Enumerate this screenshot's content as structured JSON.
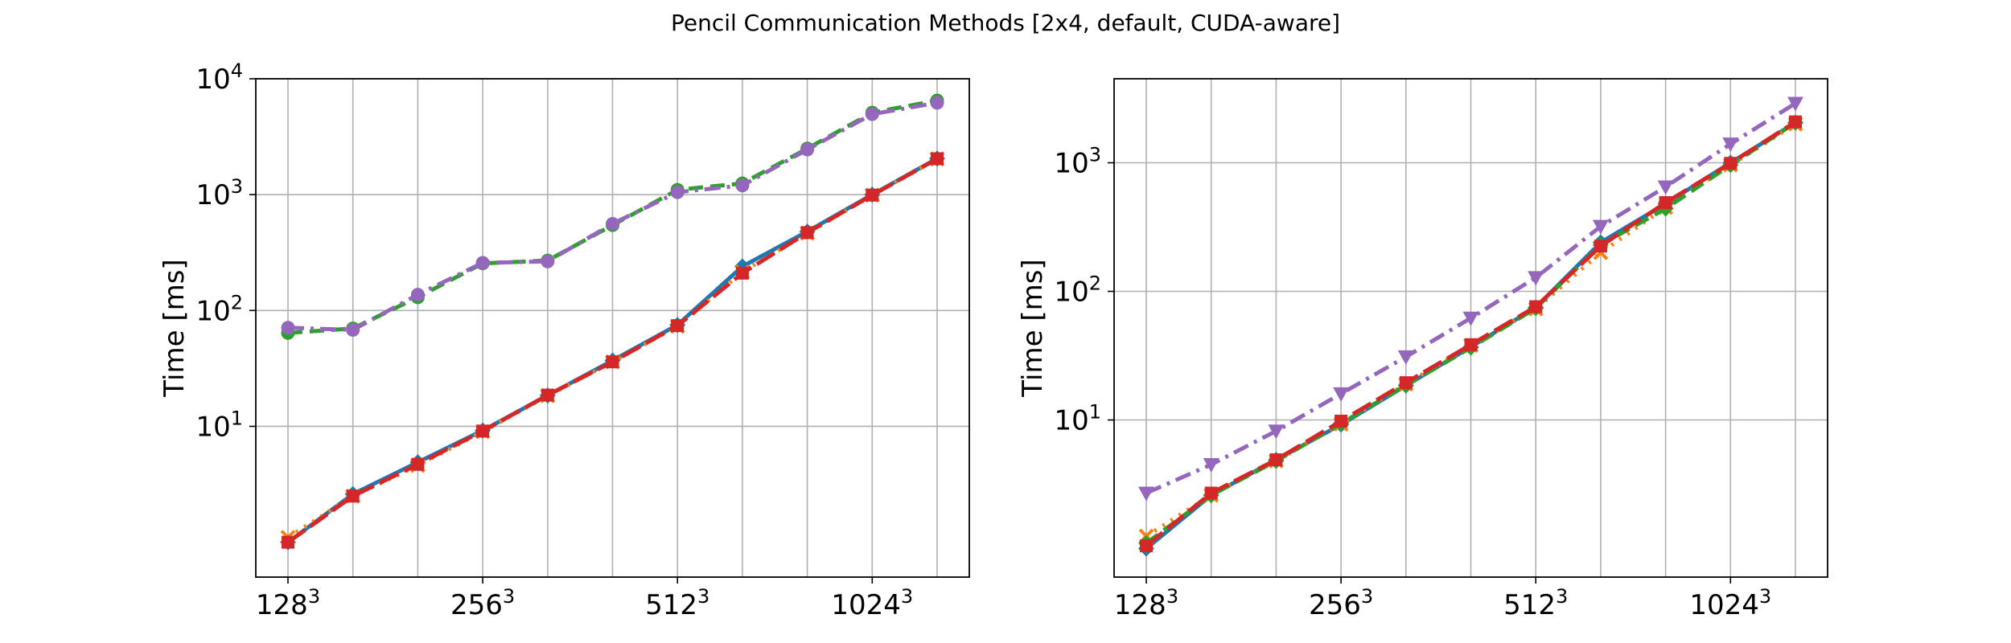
{
  "title": "Pencil Communication Methods [2x4, default, CUDA-aware]",
  "chart_data": [
    {
      "type": "line",
      "yscale": "log",
      "ylabel": "Time [ms]",
      "ylim": [
        0.5,
        10000
      ],
      "grid": true,
      "x_ticks": [
        "128",
        "256",
        "512",
        "1024"
      ],
      "x_tick_exp": "3",
      "y_ticks": [
        {
          "base": "10",
          "exp": "1",
          "value": 10
        },
        {
          "base": "10",
          "exp": "2",
          "value": 100
        },
        {
          "base": "10",
          "exp": "3",
          "value": 1000
        },
        {
          "base": "10",
          "exp": "4",
          "value": 10000
        }
      ],
      "series": [
        {
          "color": "#1f77b4",
          "marker": "D",
          "dash": "solid",
          "values": [
            1.0,
            2.6,
            4.9,
            9.2,
            18.5,
            37,
            75,
            240,
            480,
            1000,
            2050
          ]
        },
        {
          "color": "#ff7f0e",
          "marker": "x",
          "dash": "dot",
          "values": [
            1.1,
            2.5,
            4.6,
            9.0,
            18.4,
            36,
            73,
            215,
            465,
            990,
            2030
          ]
        },
        {
          "color": "#2ca02c",
          "marker": "o",
          "dash": "dash",
          "values": [
            64,
            70,
            130,
            255,
            270,
            545,
            1100,
            1250,
            2500,
            5100,
            6500
          ]
        },
        {
          "color": "#9467bd",
          "marker": "o",
          "dash": "dashdot",
          "values": [
            71,
            68,
            137,
            258,
            265,
            560,
            1050,
            1200,
            2450,
            4950,
            6200
          ]
        },
        {
          "color": "#d62728",
          "marker": "s",
          "dash": "longdash",
          "values": [
            1.0,
            2.5,
            4.7,
            9.1,
            18.6,
            36,
            74,
            210,
            470,
            990,
            2040
          ]
        }
      ]
    },
    {
      "type": "line",
      "yscale": "log",
      "ylabel": "Time [ms]",
      "ylim": [
        0.6,
        4500
      ],
      "grid": true,
      "x_ticks": [
        "128",
        "256",
        "512",
        "1024"
      ],
      "x_tick_exp": "3",
      "y_ticks": [
        {
          "base": "10",
          "exp": "1",
          "value": 10
        },
        {
          "base": "10",
          "exp": "2",
          "value": 100
        },
        {
          "base": "10",
          "exp": "3",
          "value": 1000
        }
      ],
      "series": [
        {
          "color": "#1f77b4",
          "marker": "D",
          "dash": "solid",
          "values": [
            1.0,
            2.6,
            4.9,
            9.2,
            18.5,
            37,
            75,
            240,
            480,
            1000,
            2050
          ]
        },
        {
          "color": "#ff7f0e",
          "marker": "x",
          "dash": "dot",
          "values": [
            1.25,
            2.6,
            4.8,
            9.3,
            19,
            38,
            73,
            200,
            450,
            960,
            2000
          ]
        },
        {
          "color": "#2ca02c",
          "marker": "D",
          "dash": "dash",
          "values": [
            1.1,
            2.6,
            4.8,
            9.4,
            18.6,
            36.5,
            74,
            230,
            440,
            960,
            2050
          ]
        },
        {
          "color": "#9467bd",
          "marker": "v",
          "dash": "dashdot",
          "values": [
            2.7,
            4.5,
            8.2,
            16,
            31,
            62,
            128,
            320,
            650,
            1400,
            2900
          ]
        },
        {
          "color": "#d62728",
          "marker": "s",
          "dash": "longdash",
          "values": [
            1.05,
            2.7,
            4.9,
            9.8,
            19.5,
            38.5,
            76,
            225,
            490,
            990,
            2080
          ]
        }
      ]
    }
  ]
}
